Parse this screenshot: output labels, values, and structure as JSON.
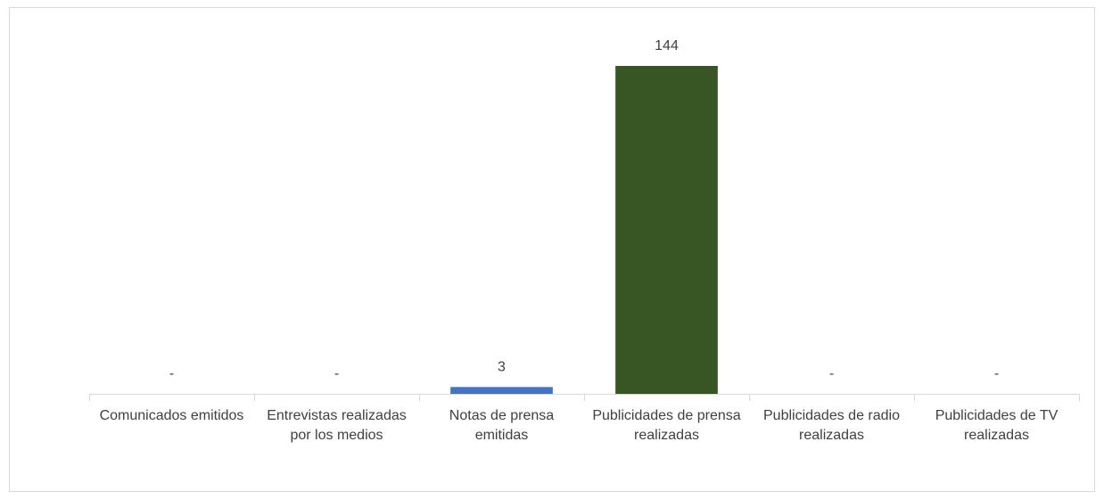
{
  "chart_data": {
    "type": "bar",
    "categories": [
      "Comunicados emitidos",
      "Entrevistas realizadas por los medios",
      "Notas de prensa emitidas",
      "Publicidades de prensa realizadas",
      "Publicidades de radio realizadas",
      "Publicidades de TV realizadas"
    ],
    "values": [
      0,
      0,
      3,
      144,
      0,
      0
    ],
    "value_labels": [
      "-",
      "-",
      "3",
      "144",
      "-",
      "-"
    ],
    "colors": [
      "#4472c4",
      "#4472c4",
      "#4472c4",
      "#375623",
      "#4472c4",
      "#4472c4"
    ],
    "ylim": [
      0,
      160
    ]
  }
}
